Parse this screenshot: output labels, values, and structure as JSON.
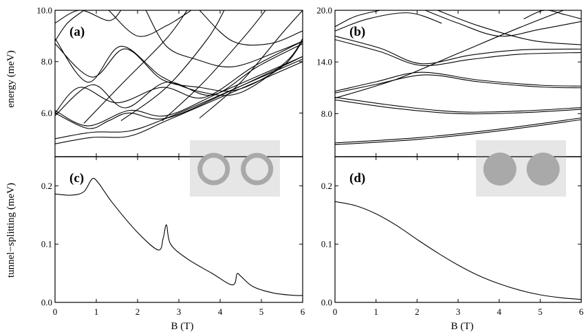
{
  "figure": {
    "ylabel_top": "energy (meV)",
    "ylabel_bottom": "tunnel−splitting (meV)",
    "xlabel": "B (T)",
    "inset_fill": "#e6e6e6",
    "inset_shape_color": "#a9a9a9"
  },
  "chart_data": [
    {
      "id": "a",
      "type": "line",
      "panel_label": "(a)",
      "xlim": [
        0,
        6
      ],
      "ylim": [
        4.3,
        10.0
      ],
      "xticks": [
        0,
        1,
        2,
        3,
        4,
        5,
        6
      ],
      "yticks": [
        6.0,
        8.0,
        10.0
      ],
      "ytick_labels": [
        "6.0",
        "8.0",
        "10.0"
      ],
      "series": [
        {
          "x": [
            0,
            0.9,
            1.8,
            2.7,
            4.0,
            6.0
          ],
          "y": [
            4.8,
            5.05,
            5.1,
            5.7,
            6.6,
            8.0
          ]
        },
        {
          "x": [
            0,
            0.9,
            1.8,
            2.7,
            4.0,
            6.0
          ],
          "y": [
            5.0,
            5.25,
            5.3,
            5.8,
            6.7,
            8.1
          ]
        },
        {
          "x": [
            0,
            0.8,
            1.3,
            1.8,
            2.7,
            4.3,
            6.0
          ],
          "y": [
            6.0,
            5.4,
            5.7,
            6.0,
            5.8,
            6.9,
            8.2
          ]
        },
        {
          "x": [
            0,
            0.8,
            1.8,
            2.7,
            4.0,
            6.0
          ],
          "y": [
            6.1,
            5.5,
            6.1,
            5.9,
            6.8,
            8.2
          ]
        },
        {
          "x": [
            0,
            0.9,
            1.7,
            2.6,
            3.5,
            4.4,
            5.5,
            6.0
          ],
          "y": [
            8.7,
            7.4,
            8.5,
            7.3,
            7.0,
            6.9,
            7.8,
            8.8
          ]
        },
        {
          "x": [
            0,
            0.8,
            1.6,
            2.6,
            3.6,
            4.5,
            5.6,
            6.0
          ],
          "y": [
            8.9,
            7.2,
            8.6,
            7.4,
            6.8,
            6.8,
            8.0,
            8.9
          ]
        },
        {
          "x": [
            0,
            0.6,
            1.5,
            2.6,
            3.6,
            4.8,
            6.0
          ],
          "y": [
            6.0,
            7.0,
            6.4,
            7.0,
            6.6,
            7.8,
            8.8
          ]
        },
        {
          "x": [
            0,
            0.9,
            1.7,
            2.7,
            3.8,
            4.9,
            6.0
          ],
          "y": [
            5.9,
            7.1,
            6.2,
            7.2,
            6.7,
            7.8,
            8.7
          ]
        },
        {
          "x": [
            0,
            0.6,
            1.3,
            1.6
          ],
          "y": [
            9.5,
            10.0,
            9.6,
            10.0
          ]
        },
        {
          "x": [
            0,
            0.3,
            0.7
          ],
          "y": [
            8.8,
            9.5,
            10.0
          ]
        },
        {
          "x": [
            0.7,
            1.6,
            2.7,
            3.2
          ],
          "y": [
            5.6,
            7.1,
            8.9,
            10.0
          ]
        },
        {
          "x": [
            1.6,
            2.7,
            3.7,
            4.1
          ],
          "y": [
            5.7,
            7.0,
            8.9,
            10.0
          ]
        },
        {
          "x": [
            2.6,
            3.6,
            4.6,
            5.1
          ],
          "y": [
            5.7,
            7.2,
            9.0,
            10.0
          ]
        },
        {
          "x": [
            3.5,
            4.5,
            5.5,
            6.0
          ],
          "y": [
            5.8,
            7.2,
            9.1,
            10.0
          ]
        },
        {
          "x": [
            2.2,
            2.7,
            3.4,
            4.3,
            5.4,
            6.0
          ],
          "y": [
            10.0,
            8.6,
            8.1,
            7.8,
            8.4,
            8.8
          ]
        },
        {
          "x": [
            1.3,
            2.0,
            2.7,
            3.3
          ],
          "y": [
            10.0,
            9.0,
            9.4,
            10.0
          ]
        },
        {
          "x": [
            3.5,
            4.3,
            5.2,
            6.0
          ],
          "y": [
            10.0,
            8.8,
            8.7,
            9.2
          ]
        }
      ]
    },
    {
      "id": "b",
      "type": "line",
      "panel_label": "(b)",
      "xlim": [
        0,
        6
      ],
      "ylim": [
        3.0,
        20.0
      ],
      "xticks": [
        0,
        1,
        2,
        3,
        4,
        5,
        6
      ],
      "yticks": [
        8.0,
        14.0,
        20.0
      ],
      "ytick_labels": [
        "8.0",
        "14.0",
        "20.0"
      ],
      "series": [
        {
          "x": [
            0,
            2,
            4,
            6
          ],
          "y": [
            4.4,
            5.0,
            6.0,
            7.3
          ]
        },
        {
          "x": [
            0,
            2,
            4,
            6
          ],
          "y": [
            4.6,
            5.2,
            6.2,
            7.5
          ]
        },
        {
          "x": [
            0,
            1.5,
            3,
            4.5,
            6
          ],
          "y": [
            9.6,
            8.6,
            8.0,
            8.1,
            8.5
          ]
        },
        {
          "x": [
            0,
            1.5,
            3,
            4.5,
            6
          ],
          "y": [
            9.9,
            8.9,
            8.2,
            8.3,
            8.7
          ]
        },
        {
          "x": [
            0,
            1,
            2.2,
            3.5,
            5,
            6
          ],
          "y": [
            10.4,
            11.4,
            12.5,
            11.7,
            11.1,
            11.0
          ]
        },
        {
          "x": [
            0,
            1,
            2.1,
            3.5,
            5,
            6
          ],
          "y": [
            10.6,
            11.7,
            12.8,
            11.9,
            11.3,
            11.2
          ]
        },
        {
          "x": [
            0,
            1.1,
            2.1,
            3.3,
            4.5,
            6
          ],
          "y": [
            16.6,
            15.2,
            13.6,
            14.3,
            14.9,
            15.1
          ]
        },
        {
          "x": [
            0,
            1.1,
            2.1,
            3.3,
            4.5,
            6
          ],
          "y": [
            17.0,
            15.6,
            13.8,
            14.8,
            15.4,
            15.5
          ]
        },
        {
          "x": [
            0,
            0.8,
            1.8,
            2.6
          ],
          "y": [
            17.6,
            19.0,
            19.7,
            18.5
          ]
        },
        {
          "x": [
            0,
            0.5,
            1.1
          ],
          "y": [
            18.1,
            19.3,
            20.0
          ]
        },
        {
          "x": [
            0,
            1.5,
            3,
            4.5,
            6
          ],
          "y": [
            9.8,
            12.0,
            15.0,
            18.0,
            20.8
          ]
        },
        {
          "x": [
            2.2,
            3.0,
            4.0,
            5.0,
            6.0
          ],
          "y": [
            20.0,
            18.5,
            17.0,
            17.8,
            18.7
          ]
        },
        {
          "x": [
            2.5,
            3.5,
            4.8,
            6.0
          ],
          "y": [
            20.0,
            18.2,
            16.5,
            16.0
          ]
        },
        {
          "x": [
            4.6,
            5.1,
            5.6,
            6.0
          ],
          "y": [
            19.0,
            20.0,
            19.5,
            19.0
          ]
        }
      ]
    },
    {
      "id": "c",
      "type": "line",
      "panel_label": "(c)",
      "xlim": [
        0,
        6
      ],
      "ylim": [
        0.0,
        0.25
      ],
      "xticks": [
        0,
        1,
        2,
        3,
        4,
        5,
        6
      ],
      "yticks": [
        0.0,
        0.1,
        0.2
      ],
      "ytick_labels": [
        "0.0",
        "0.1",
        "0.2"
      ],
      "series": [
        {
          "x": [
            0,
            0.4,
            0.7,
            0.9,
            1.05,
            1.4,
            2.0,
            2.5,
            2.62,
            2.7,
            2.8,
            3.2,
            3.8,
            4.3,
            4.41,
            4.5,
            4.8,
            5.3,
            5.8,
            6.0
          ],
          "y": [
            0.186,
            0.184,
            0.19,
            0.212,
            0.205,
            0.17,
            0.12,
            0.09,
            0.11,
            0.133,
            0.1,
            0.075,
            0.05,
            0.03,
            0.049,
            0.045,
            0.027,
            0.016,
            0.012,
            0.012
          ]
        }
      ]
    },
    {
      "id": "d",
      "type": "line",
      "panel_label": "(d)",
      "xlim": [
        0,
        6
      ],
      "ylim": [
        0.0,
        0.25
      ],
      "xticks": [
        0,
        1,
        2,
        3,
        4,
        5,
        6
      ],
      "yticks": [
        0.0,
        0.1,
        0.2
      ],
      "ytick_labels": [
        "0.0",
        "0.1",
        "0.2"
      ],
      "series": [
        {
          "x": [
            0,
            0.5,
            1,
            1.5,
            2,
            2.5,
            3,
            3.5,
            4,
            4.5,
            5,
            5.5,
            6
          ],
          "y": [
            0.173,
            0.166,
            0.152,
            0.132,
            0.108,
            0.085,
            0.064,
            0.046,
            0.032,
            0.021,
            0.013,
            0.008,
            0.005
          ]
        }
      ]
    }
  ]
}
